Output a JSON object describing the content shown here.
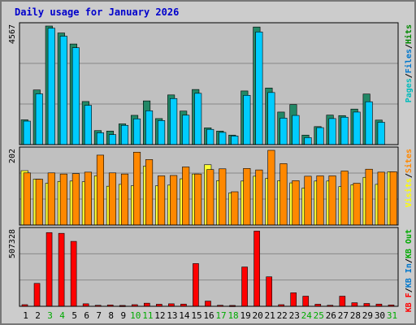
{
  "chart_data": [
    {
      "type": "bar",
      "title": "Daily usage for January 2026",
      "ymax_label": "4567",
      "series_labels": [
        "Pages",
        "Files",
        "Hits"
      ],
      "series_label_separator": "/",
      "colors": {
        "Pages": "#00bbbb",
        "Files": "#0077cc",
        "Hits": "#008800",
        "hits_bar": "#228866",
        "files_bar": "#00ccff",
        "pages_bar": "#00aacc"
      },
      "categories": [
        "1",
        "2",
        "3",
        "4",
        "5",
        "6",
        "7",
        "8",
        "9",
        "10",
        "11",
        "12",
        "13",
        "14",
        "15",
        "16",
        "17",
        "18",
        "19",
        "20",
        "21",
        "22",
        "23",
        "24",
        "25",
        "26",
        "27",
        "28",
        "29",
        "30",
        "31"
      ],
      "series": [
        {
          "name": "Hits",
          "values": [
            955,
            2105,
            4567,
            4299,
            3875,
            1660,
            540,
            521,
            799,
            1128,
            1684,
            1003,
            1914,
            1292,
            2123,
            646,
            521,
            367,
            2067,
            4529,
            2180,
            1254,
            1543,
            367,
            694,
            1138,
            1118,
            1369,
            1948,
            945,
            0
          ]
        },
        {
          "name": "Files",
          "values": [
            906,
            1956,
            4482,
            4175,
            3731,
            1514,
            457,
            386,
            743,
            993,
            1304,
            927,
            1775,
            1134,
            1976,
            587,
            471,
            333,
            1898,
            4337,
            2007,
            1021,
            1124,
            270,
            655,
            1004,
            1056,
            1254,
            1651,
            861,
            0
          ]
        },
        {
          "name": "Pages",
          "values": [
            0,
            0,
            0,
            0,
            0,
            0,
            0,
            0,
            0,
            0,
            0,
            0,
            0,
            0,
            0,
            0,
            0,
            0,
            0,
            0,
            0,
            0,
            0,
            0,
            0,
            0,
            0,
            0,
            0,
            0,
            0
          ]
        }
      ],
      "ylim": [
        0,
        4567
      ]
    },
    {
      "type": "bar",
      "ymax_label": "202",
      "series_labels": [
        "Visits",
        "Sites"
      ],
      "series_label_separator": "/",
      "colors": {
        "Visits": "#ffff00",
        "Sites": "#ff8800",
        "visits_bar": "#ffff33",
        "sites_bar": "#ff8800"
      },
      "categories": [
        "1",
        "2",
        "3",
        "4",
        "5",
        "6",
        "7",
        "8",
        "9",
        "10",
        "11",
        "12",
        "13",
        "14",
        "15",
        "16",
        "17",
        "18",
        "19",
        "20",
        "21",
        "22",
        "23",
        "24",
        "25",
        "26",
        "27",
        "28",
        "29",
        "30",
        "31"
      ],
      "series": [
        {
          "name": "Visits",
          "values": [
            147,
            124,
            113,
            118,
            119,
            117,
            133,
            105,
            110,
            106,
            159,
            106,
            108,
            125,
            138,
            163,
            120,
            87,
            119,
            132,
            126,
            120,
            114,
            100,
            119,
            119,
            104,
            109,
            129,
            110,
            144
          ]
        },
        {
          "name": "Sites",
          "values": [
            141,
            124,
            141,
            138,
            139,
            143,
            189,
            141,
            138,
            197,
            177,
            133,
            134,
            157,
            138,
            150,
            152,
            90,
            153,
            149,
            202,
            166,
            120,
            132,
            133,
            133,
            146,
            113,
            151,
            143,
            144
          ]
        }
      ],
      "ylim": [
        0,
        202
      ]
    },
    {
      "type": "bar",
      "ymax_label": "507328",
      "series_labels": [
        "KB F",
        "KB In",
        "KB Out"
      ],
      "series_label_separator": "/",
      "colors": {
        "KB F": "#ff0000",
        "KB In": "#0077cc",
        "KB Out": "#00aa00",
        "kbf_bar": "#ff0000"
      },
      "categories": [
        "1",
        "2",
        "3",
        "4",
        "5",
        "6",
        "7",
        "8",
        "9",
        "10",
        "11",
        "12",
        "13",
        "14",
        "15",
        "16",
        "17",
        "18",
        "19",
        "20",
        "21",
        "22",
        "23",
        "24",
        "25",
        "26",
        "27",
        "28",
        "29",
        "30",
        "31"
      ],
      "series": [
        {
          "name": "KB F",
          "values": [
            11000,
            154000,
            495000,
            490000,
            436000,
            17000,
            7000,
            9000,
            6000,
            11000,
            21000,
            14000,
            17000,
            15000,
            287000,
            35000,
            7000,
            6000,
            264000,
            505000,
            198000,
            11000,
            91000,
            68000,
            14000,
            7000,
            68000,
            24000,
            19000,
            15000,
            9000
          ]
        }
      ],
      "ylim": [
        0,
        507328
      ]
    }
  ],
  "x_tick_colors": {
    "weekday": "#000000",
    "weekend": "#00aa00"
  },
  "weekend_days": [
    "3",
    "4",
    "10",
    "11",
    "17",
    "18",
    "24",
    "25",
    "31"
  ]
}
